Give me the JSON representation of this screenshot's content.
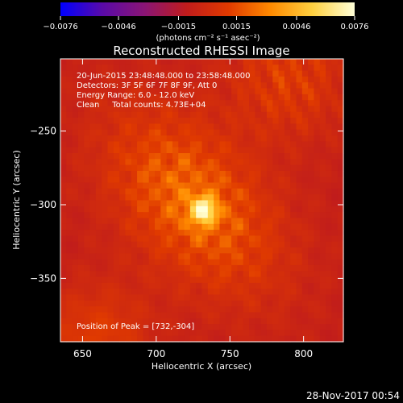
{
  "chart_data": {
    "type": "heatmap",
    "title": "Reconstructed RHESSI Image",
    "xlabel": "Heliocentric X (arcsec)",
    "ylabel": "Heliocentric Y (arcsec)",
    "xlim": [
      635,
      827
    ],
    "ylim": [
      -393,
      -201
    ],
    "xticks": [
      650,
      700,
      750,
      800
    ],
    "yticks": [
      -250,
      -300,
      -350
    ],
    "xtick_labels": [
      "650",
      "700",
      "750",
      "800"
    ],
    "ytick_labels": [
      "−250",
      "−300",
      "−350"
    ],
    "colorbar": {
      "range": [
        -0.0076,
        0.0076
      ],
      "ticks": [
        -0.0076,
        -0.0046,
        -0.0015,
        0.0015,
        0.0046,
        0.0076
      ],
      "tick_labels": [
        "−0.0076",
        "−0.0046",
        "−0.0015",
        "0.0015",
        "0.0046",
        "0.0076"
      ],
      "unit_label": "(photons cm⁻² s⁻¹ asec⁻²)",
      "colors": [
        "#0000ff",
        "#5a0aa8",
        "#8a1575",
        "#c01c1c",
        "#e03a00",
        "#ff8a00",
        "#ffd040",
        "#ffffd8"
      ]
    },
    "info_lines": [
      "20-Jun-2015 23:48:48.000 to 23:58:48.000",
      "Detectors: 3F 5F 6F 7F 8F 9F, Att 0",
      "Energy Range: 6.0 - 12.0 keV",
      "Clean     Total counts: 4.73E+04"
    ],
    "peak_position": "Position of Peak = [732,-304]",
    "peak": {
      "x": 732,
      "y": -304,
      "value": 0.0076
    },
    "source": {
      "x": 725,
      "y": -298,
      "value": 0.0035
    },
    "background": {
      "value": -0.0008
    }
  },
  "footer": {
    "timestamp": "28-Nov-2017 00:54"
  }
}
